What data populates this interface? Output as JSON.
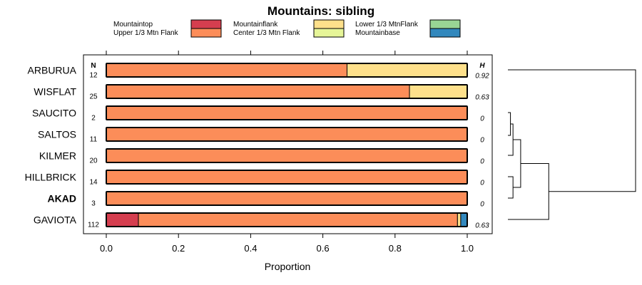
{
  "chart_data": {
    "type": "stacked-horizontal-bar",
    "title": "Mountains: sibling",
    "xlabel": "Proportion",
    "xlim": [
      0,
      1
    ],
    "xticks": [
      "0.0",
      "0.2",
      "0.4",
      "0.6",
      "0.8",
      "1.0"
    ],
    "n_header": "N",
    "h_header": "H",
    "legend": [
      {
        "name": "Mountaintop",
        "color": "#d53e4f"
      },
      {
        "name": "Upper 1/3 Mtn Flank",
        "color": "#fc8d59"
      },
      {
        "name": "Mountainflank",
        "color": "#fee08b"
      },
      {
        "name": "Center 1/3 Mtn Flank",
        "color": "#e6f598"
      },
      {
        "name": "Lower 1/3 MtnFlank",
        "color": "#99d594"
      },
      {
        "name": "Mountainbase",
        "color": "#3288bd"
      }
    ],
    "rows": [
      {
        "label": "ARBURUA",
        "bold": false,
        "n": "12",
        "h": "0.92",
        "values": [
          0,
          0.667,
          0.333,
          0,
          0,
          0
        ]
      },
      {
        "label": "WISFLAT",
        "bold": false,
        "n": "25",
        "h": "0.63",
        "values": [
          0,
          0.84,
          0.16,
          0,
          0,
          0
        ]
      },
      {
        "label": "SAUCITO",
        "bold": false,
        "n": "2",
        "h": "0",
        "values": [
          0,
          1,
          0,
          0,
          0,
          0
        ]
      },
      {
        "label": "SALTOS",
        "bold": false,
        "n": "11",
        "h": "0",
        "values": [
          0,
          1,
          0,
          0,
          0,
          0
        ]
      },
      {
        "label": "KILMER",
        "bold": false,
        "n": "20",
        "h": "0",
        "values": [
          0,
          1,
          0,
          0,
          0,
          0
        ]
      },
      {
        "label": "HILLBRICK",
        "bold": false,
        "n": "14",
        "h": "0",
        "values": [
          0,
          1,
          0,
          0,
          0,
          0
        ]
      },
      {
        "label": "AKAD",
        "bold": true,
        "n": "3",
        "h": "0",
        "values": [
          0,
          1,
          0,
          0,
          0,
          0
        ]
      },
      {
        "label": "GAVIOTA",
        "bold": false,
        "n": "112",
        "h": "0.63",
        "values": [
          0.089,
          0.884,
          0.009,
          0,
          0,
          0.018
        ]
      }
    ],
    "dendrogram": {
      "leaves": [
        "ARBURUA",
        "WISFLAT",
        "SAUCITO",
        "SALTOS",
        "KILMER",
        "HILLBRICK",
        "AKAD",
        "GAVIOTA"
      ],
      "merges": [
        {
          "left": "SAUCITO",
          "right": "SALTOS",
          "height": 0.01
        },
        {
          "left": "m0",
          "right": "KILMER",
          "height": 0.02
        },
        {
          "left": "HILLBRICK",
          "right": "AKAD",
          "height": 0.02
        },
        {
          "left": "m1",
          "right": "m2",
          "height": 0.05
        },
        {
          "left": "m3",
          "right": "GAVIOTA",
          "height": 0.16
        },
        {
          "left": "ARBURUA",
          "right": "m4",
          "height": 0.5
        }
      ]
    }
  }
}
